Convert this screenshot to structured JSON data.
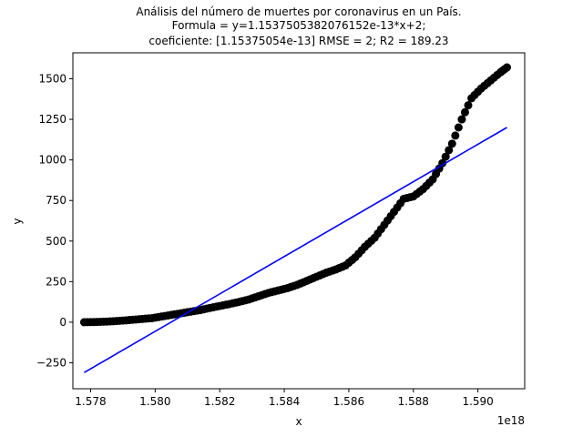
{
  "chart_data": {
    "type": "scatter",
    "title": [
      "Análisis del número de muertes por coronavirus en un País.",
      "Formula = y=1.1537505382076152e-13*x+2;",
      "coeficiente: [1.15375054e-13] RMSE = 2; R2 = 189.23"
    ],
    "xlabel": "x",
    "ylabel": "y",
    "x_offset_label": "1e18",
    "x_tick_values": [
      1.578,
      1.58,
      1.582,
      1.584,
      1.586,
      1.588,
      1.59
    ],
    "x_tick_labels": [
      "1.578",
      "1.580",
      "1.582",
      "1.584",
      "1.586",
      "1.588",
      "1.590"
    ],
    "y_tick_values": [
      -250,
      0,
      250,
      500,
      750,
      1000,
      1250,
      1500
    ],
    "y_tick_labels": [
      "−250",
      "0",
      "250",
      "500",
      "750",
      "1000",
      "1250",
      "1500"
    ],
    "xlim": [
      1.57745,
      1.59145
    ],
    "ylim": [
      -410,
      1660
    ],
    "series": [
      {
        "type": "scatter",
        "color": "#000000",
        "x": [
          1.5778,
          1.5781,
          1.5784,
          1.5787,
          1.579,
          1.5793,
          1.5796,
          1.5799,
          1.5802,
          1.5805,
          1.5808,
          1.5811,
          1.5814,
          1.5817,
          1.582,
          1.5823,
          1.5826,
          1.5829,
          1.5832,
          1.5835,
          1.5838,
          1.5841,
          1.5844,
          1.5847,
          1.585,
          1.5853,
          1.5856,
          1.5859,
          1.5862,
          1.5865,
          1.5868,
          1.5871,
          1.5874,
          1.5877,
          1.588,
          1.5883,
          1.5886,
          1.5889,
          1.5892,
          1.5895,
          1.5898,
          1.5901,
          1.5904,
          1.5907,
          1.5909
        ],
        "y": [
          0,
          1,
          3,
          6,
          10,
          15,
          20,
          25,
          35,
          45,
          55,
          65,
          75,
          88,
          100,
          112,
          125,
          140,
          160,
          180,
          195,
          210,
          230,
          255,
          280,
          305,
          325,
          350,
          400,
          465,
          520,
          600,
          680,
          760,
          775,
          820,
          880,
          980,
          1100,
          1250,
          1380,
          1440,
          1490,
          1540,
          1570
        ]
      },
      {
        "type": "line",
        "color": "#0000ff",
        "x": [
          1.5778,
          1.5909
        ],
        "y": [
          -310,
          1200
        ]
      }
    ],
    "grid": false,
    "legend": "none"
  }
}
